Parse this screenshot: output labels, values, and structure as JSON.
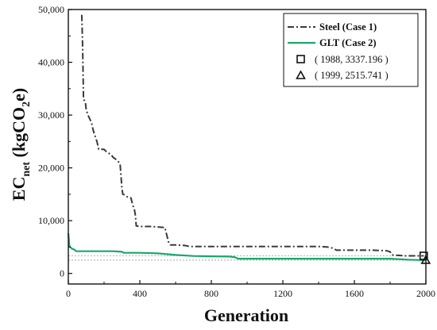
{
  "chart_data": {
    "type": "line",
    "title": "",
    "xlabel": "Generation",
    "ylabel": {
      "main": "EC",
      "sub": "net",
      "unit_prefix": " (kgCO",
      "unit_sub": "2",
      "unit_suffix": "e)"
    },
    "xlim": [
      0,
      2000
    ],
    "ylim": [
      -2000,
      50000
    ],
    "xticks": [
      0,
      400,
      800,
      1200,
      1600,
      2000
    ],
    "xtick_labels": [
      "0",
      "400",
      "800",
      "1200",
      "1600",
      "2000"
    ],
    "yticks": [
      0,
      10000,
      20000,
      30000,
      40000,
      50000
    ],
    "ytick_labels": [
      "0",
      "10,000",
      "20,000",
      "30,000",
      "40,000",
      "50,000"
    ],
    "grid": false,
    "legend_position": "top-right",
    "reference_lines": [
      3337.196,
      2515.741
    ],
    "colors": {
      "steel": "#3a3a3a",
      "glt": "#1aa86a",
      "axis": "#111111",
      "ref": "#9a9a9a"
    },
    "series": [
      {
        "name": "Steel (Case 1)",
        "style": "dash-dot",
        "x": [
          75,
          80,
          85,
          95,
          100,
          110,
          130,
          140,
          160,
          170,
          200,
          215,
          240,
          250,
          270,
          285,
          290,
          300,
          305,
          320,
          330,
          350,
          360,
          370,
          375,
          380,
          400,
          430,
          460,
          500,
          540,
          560,
          570,
          600,
          650,
          680,
          800,
          900,
          1000,
          1100,
          1200,
          1300,
          1400,
          1450,
          1480,
          1500,
          1600,
          1700,
          1780,
          1800,
          1810,
          1860,
          1880,
          1900,
          1950,
          1988
        ],
        "values": [
          49000,
          43000,
          33000,
          32500,
          31000,
          30000,
          28500,
          27000,
          25000,
          23500,
          23500,
          23000,
          22500,
          22000,
          21500,
          21000,
          20500,
          16000,
          15000,
          14800,
          14500,
          14300,
          13000,
          12000,
          11000,
          9000,
          8900,
          8900,
          8900,
          8800,
          8700,
          6000,
          5400,
          5400,
          5300,
          5100,
          5100,
          5100,
          5100,
          5100,
          5100,
          5100,
          5100,
          5000,
          4800,
          4400,
          4400,
          4400,
          4300,
          4100,
          3500,
          3400,
          3337,
          3337,
          3337,
          3337
        ]
      },
      {
        "name": "GLT (Case 2)",
        "style": "solid",
        "x": [
          0,
          3,
          6,
          10,
          20,
          35,
          40,
          45,
          80,
          100,
          150,
          250,
          300,
          310,
          340,
          400,
          500,
          600,
          700,
          800,
          900,
          930,
          950,
          1000,
          1100,
          1200,
          1400,
          1600,
          1700,
          1800,
          1850,
          1900,
          1950,
          1999
        ],
        "values": [
          7600,
          6500,
          5300,
          5000,
          4700,
          4500,
          4300,
          4200,
          4200,
          4200,
          4200,
          4200,
          4100,
          3900,
          3900,
          3900,
          3800,
          3500,
          3300,
          3250,
          3200,
          3100,
          2800,
          2800,
          2800,
          2800,
          2800,
          2800,
          2800,
          2800,
          2700,
          2600,
          2550,
          2516
        ]
      }
    ],
    "points": [
      {
        "label": "( 1988, 3337.196 )",
        "x": 1988,
        "y": 3337.196,
        "marker": "square"
      },
      {
        "label": "( 1999, 2515.741 )",
        "x": 1999,
        "y": 2515.741,
        "marker": "triangle"
      }
    ]
  }
}
